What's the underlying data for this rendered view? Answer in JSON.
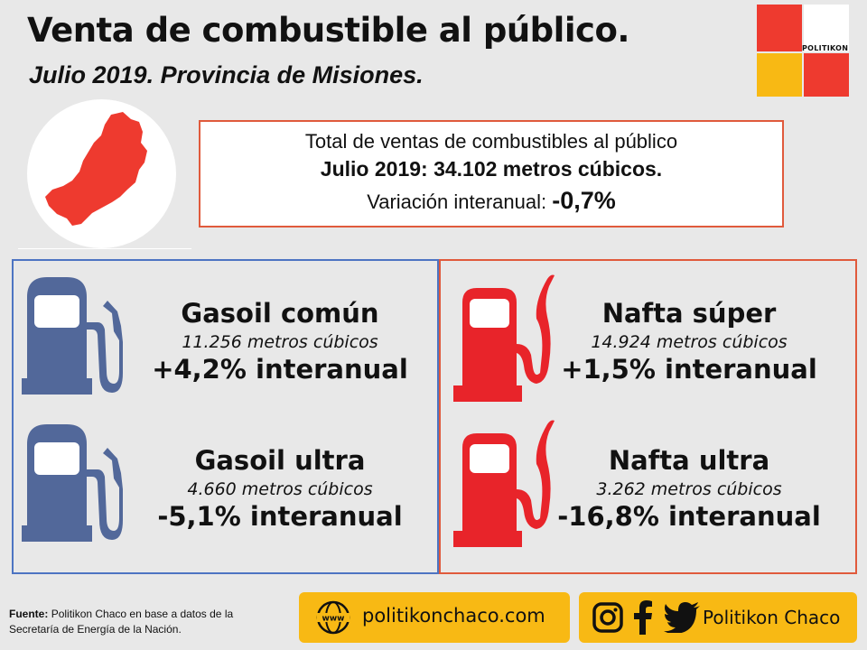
{
  "header": {
    "title": "Venta de combustible al público.",
    "subtitle": "Julio 2019. Provincia de Misiones."
  },
  "logo": {
    "text": "POLITIKON"
  },
  "total": {
    "line1": "Total de ventas de combustibles al público",
    "line2": "Julio 2019: 34.102 metros cúbicos.",
    "variation_label": "Variación interanual:",
    "variation_value": "-0,7%"
  },
  "fuels": [
    {
      "name": "Gasoil común",
      "volume": "11.256 metros cúbicos",
      "variation": "+4,2% interanual"
    },
    {
      "name": "Gasoil ultra",
      "volume": "4.660 metros cúbicos",
      "variation": "-5,1% interanual"
    },
    {
      "name": "Nafta súper",
      "volume": "14.924 metros cúbicos",
      "variation": "+1,5% interanual"
    },
    {
      "name": "Nafta ultra",
      "volume": "3.262 metros cúbicos",
      "variation": "-16,8% interanual"
    }
  ],
  "footer": {
    "source_label": "Fuente:",
    "source_text": "Politikon Chaco en base a datos de la Secretaría de Energía de la Nación.",
    "web_icon_text": "www",
    "website": "politikonchaco.com",
    "social": "Politikon Chaco"
  },
  "colors": {
    "accent_red": "#ee3a2f",
    "accent_yellow": "#f8b914",
    "gasoil_blue": "#52689a",
    "nafta_red": "#e8242a",
    "border_blue": "#4d74c2",
    "border_red": "#e05a3c"
  },
  "icons": [
    "misiones-map-icon",
    "gas-pump-icon",
    "globe-icon",
    "instagram-icon",
    "facebook-icon",
    "twitter-icon"
  ]
}
